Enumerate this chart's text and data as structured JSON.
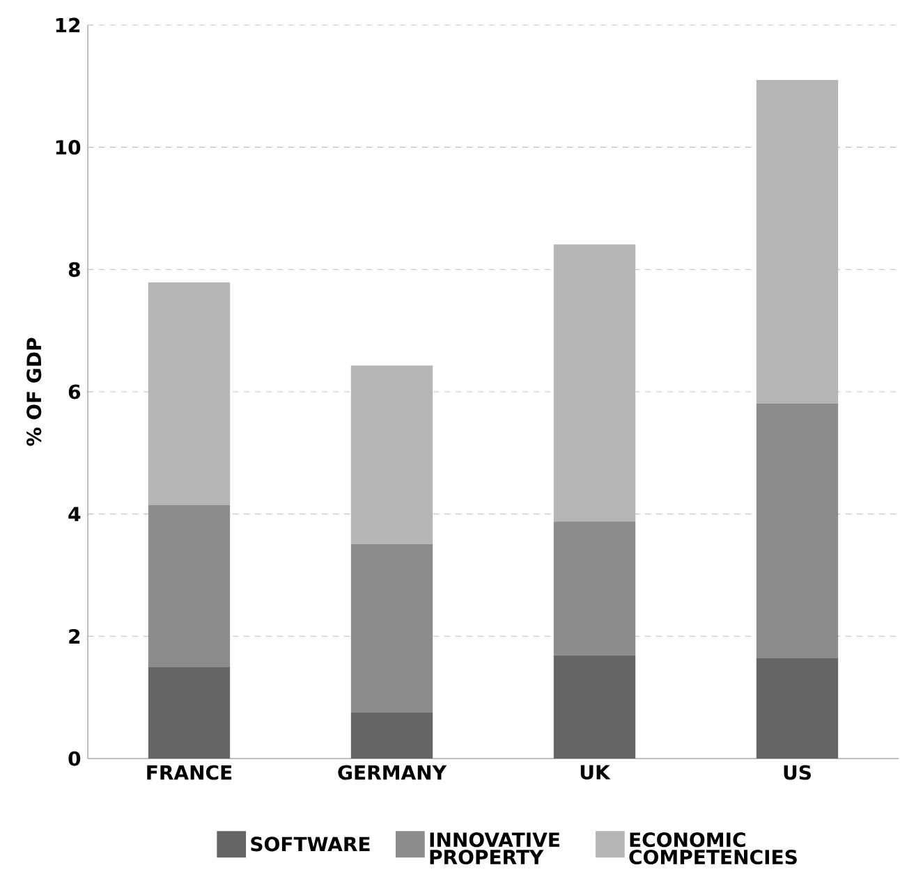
{
  "chart_data": {
    "type": "bar",
    "stacked": true,
    "ylabel": "% OF GDP",
    "categories": [
      "FRANCE",
      "GERMANY",
      "UK",
      "US"
    ],
    "series": [
      {
        "name": "SOFTWARE",
        "color": "#646567",
        "values": [
          1.5,
          0.75,
          1.69,
          1.64
        ]
      },
      {
        "name": "INNOVATIVE PROPERTY",
        "color": "#8b8c8e",
        "values": [
          2.65,
          2.76,
          2.19,
          4.17
        ]
      },
      {
        "name": "ECONOMIC COMPETENCIES",
        "color": "#b4b5b7",
        "values": [
          3.64,
          2.92,
          4.53,
          5.29
        ]
      }
    ],
    "ylim": [
      0,
      12
    ],
    "yticks": [
      0,
      2,
      4,
      6,
      8,
      10,
      12
    ],
    "grid": "y",
    "legend": "bottom"
  }
}
